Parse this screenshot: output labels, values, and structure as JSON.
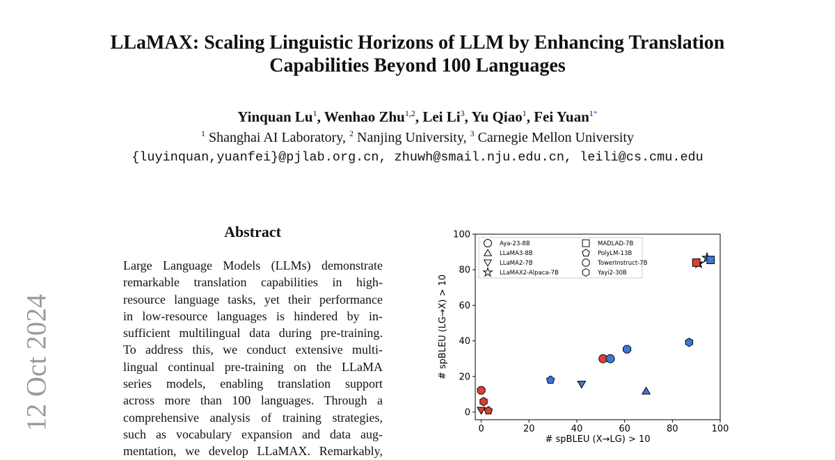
{
  "paper": {
    "title_lines": [
      "LLaMAX: Scaling Linguistic Horizons of LLM by Enhancing Translation",
      "Capabilities Beyond 100 Languages"
    ],
    "authors": [
      {
        "name": "Yinquan Lu",
        "sup": "1"
      },
      {
        "name": "Wenhao Zhu",
        "sup": "1,2"
      },
      {
        "name": "Lei Li",
        "sup": "3"
      },
      {
        "name": "Yu Qiao",
        "sup": "1"
      },
      {
        "name": "Fei Yuan",
        "sup": "1",
        "mark": "*"
      }
    ],
    "affiliations": [
      {
        "sup": "1",
        "name": "Shanghai AI Laboratory"
      },
      {
        "sup": "2",
        "name": "Nanjing University"
      },
      {
        "sup": "3",
        "name": "Carnegie Mellon University"
      }
    ],
    "emails": "{luyinquan,yuanfei}@pjlab.org.cn, zhuwh@smail.nju.edu.cn, leili@cs.cmu.edu",
    "arxiv_stamp": "12 Oct 2024",
    "abstract_heading": "Abstract",
    "abstract_lines": [
      "Large Language Models (LLMs) demonstrate",
      "remarkable translation capabilities in high-",
      "resource language tasks, yet their performance",
      "in low-resource languages is hindered by in-",
      "sufficient multilingual data during pre-training.",
      "To address this, we conduct extensive multi-",
      "lingual continual pre-training on the LLaMA",
      "series models, enabling translation support",
      "across more than 100 languages.  Through a",
      "comprehensive analysis of training strategies,",
      "such as vocabulary expansion and data aug-",
      "mentation, we develop LLaMAX. Remarkably,"
    ]
  },
  "chart_data": {
    "type": "scatter",
    "xlabel": "# spBLEU (X→LG) > 10",
    "ylabel": "# spBLEU (LG→X) > 10",
    "xlim": [
      -2.5,
      100
    ],
    "ylim": [
      -4.3,
      100
    ],
    "xticks": [
      0,
      20,
      40,
      60,
      80,
      100
    ],
    "yticks": [
      0,
      20,
      40,
      60,
      80,
      100
    ],
    "legend": "upper left",
    "series": [
      {
        "name": "Aya-23-8B",
        "marker": "circle",
        "x": [
          51,
          54
        ],
        "values": [
          30,
          30
        ],
        "colors": [
          "#e0402f",
          "#3a78d8"
        ]
      },
      {
        "name": "LLaMA3-8B",
        "marker": "triangle-up",
        "x": [
          69
        ],
        "values": [
          11.8
        ],
        "colors": [
          "#3a78d8"
        ]
      },
      {
        "name": "LLaMA2-7B",
        "marker": "triangle-down",
        "x": [
          0,
          42
        ],
        "values": [
          1,
          15.7
        ],
        "colors": [
          "#e0402f",
          "#3a78d8"
        ]
      },
      {
        "name": "LLaMAX2-Alpaca-7B",
        "marker": "star",
        "x": [
          91,
          94.5
        ],
        "values": [
          83.5,
          86.7
        ],
        "colors": [
          "#222222",
          "#3a78d8"
        ]
      },
      {
        "name": "MADLAD-7B",
        "marker": "square",
        "x": [
          90,
          96
        ],
        "values": [
          84,
          85.5
        ],
        "colors": [
          "#e0402f",
          "#3a78d8"
        ]
      },
      {
        "name": "PolyLM-13B",
        "marker": "pentagon",
        "x": [
          3,
          29
        ],
        "values": [
          0.8,
          18
        ],
        "colors": [
          "#e0402f",
          "#3a78d8"
        ]
      },
      {
        "name": "TowerInstruct-7B",
        "marker": "octagon",
        "x": [
          0,
          61
        ],
        "values": [
          12.2,
          35.3
        ],
        "colors": [
          "#e0402f",
          "#3a78d8"
        ]
      },
      {
        "name": "Yayi2-30B",
        "marker": "hexagon",
        "x": [
          1,
          87
        ],
        "values": [
          5.9,
          39.2
        ],
        "colors": [
          "#e0402f",
          "#3a78d8"
        ]
      }
    ]
  }
}
